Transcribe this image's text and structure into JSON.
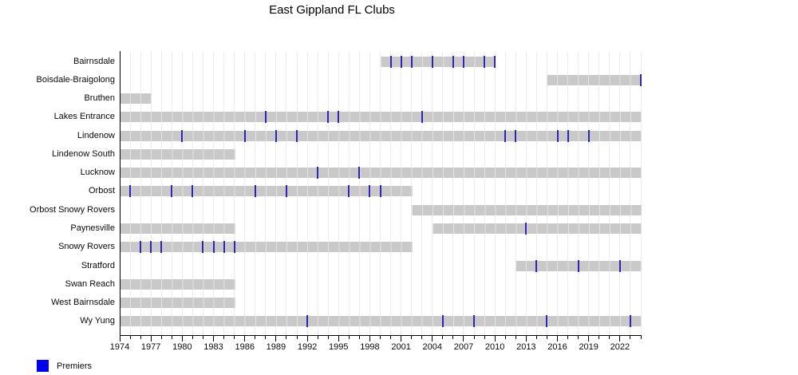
{
  "title": "East Gippland FL Clubs",
  "legend": {
    "label": "Premiers"
  },
  "colors": {
    "bar": "#c9c9c9",
    "premier_tick": "#2828b4",
    "legend_swatch": "#0000ee",
    "grid": "#ececec",
    "axis": "#000000"
  },
  "chart_data": {
    "type": "timeline-gantt",
    "title": "East Gippland FL Clubs",
    "x_axis": {
      "min": 1974,
      "max": 2024,
      "tick_labels": [
        1974,
        1977,
        1980,
        1983,
        1986,
        1989,
        1992,
        1995,
        1998,
        2001,
        2004,
        2007,
        2010,
        2013,
        2016,
        2019,
        2022
      ],
      "minor_tick_interval": 1,
      "labeled_tick_interval": 3,
      "grid": "vertical, every year, faint"
    },
    "legend": [
      {
        "label": "Premiers",
        "color": "blue"
      }
    ],
    "clubs": [
      {
        "name": "Bairnsdale",
        "spans": [
          [
            1999,
            2010
          ]
        ],
        "premiers": [
          2000,
          2001,
          2002,
          2004,
          2006,
          2007,
          2009,
          2010
        ]
      },
      {
        "name": "Boisdale-Braigolong",
        "spans": [
          [
            2015,
            2024
          ]
        ],
        "premiers": [
          2024
        ]
      },
      {
        "name": "Bruthen",
        "spans": [
          [
            1974,
            1977
          ]
        ],
        "premiers": []
      },
      {
        "name": "Lakes Entrance",
        "spans": [
          [
            1974,
            2024
          ]
        ],
        "premiers": [
          1988,
          1994,
          1995,
          2003
        ]
      },
      {
        "name": "Lindenow",
        "spans": [
          [
            1974,
            2024
          ]
        ],
        "premiers": [
          1980,
          1986,
          1989,
          1991,
          2011,
          2012,
          2016,
          2017,
          2019
        ]
      },
      {
        "name": "Lindenow South",
        "spans": [
          [
            1974,
            1985
          ]
        ],
        "premiers": []
      },
      {
        "name": "Lucknow",
        "spans": [
          [
            1974,
            2024
          ]
        ],
        "premiers": [
          1993,
          1997
        ]
      },
      {
        "name": "Orbost",
        "spans": [
          [
            1974,
            2002
          ]
        ],
        "premiers": [
          1975,
          1979,
          1981,
          1987,
          1990,
          1996,
          1998,
          1999
        ]
      },
      {
        "name": "Orbost Snowy Rovers",
        "spans": [
          [
            2002,
            2024
          ]
        ],
        "premiers": []
      },
      {
        "name": "Paynesville",
        "spans": [
          [
            1974,
            1985
          ],
          [
            2004,
            2024
          ]
        ],
        "premiers": [
          2013
        ]
      },
      {
        "name": "Snowy Rovers",
        "spans": [
          [
            1974,
            2002
          ]
        ],
        "premiers": [
          1976,
          1977,
          1978,
          1982,
          1983,
          1984,
          1985
        ]
      },
      {
        "name": "Stratford",
        "spans": [
          [
            2012,
            2024
          ]
        ],
        "premiers": [
          2014,
          2018,
          2022
        ]
      },
      {
        "name": "Swan Reach",
        "spans": [
          [
            1974,
            1985
          ]
        ],
        "premiers": []
      },
      {
        "name": "West Bairnsdale",
        "spans": [
          [
            1974,
            1985
          ]
        ],
        "premiers": []
      },
      {
        "name": "Wy Yung",
        "spans": [
          [
            1974,
            2024
          ]
        ],
        "premiers": [
          1992,
          2005,
          2008,
          2015,
          2023
        ]
      }
    ]
  }
}
